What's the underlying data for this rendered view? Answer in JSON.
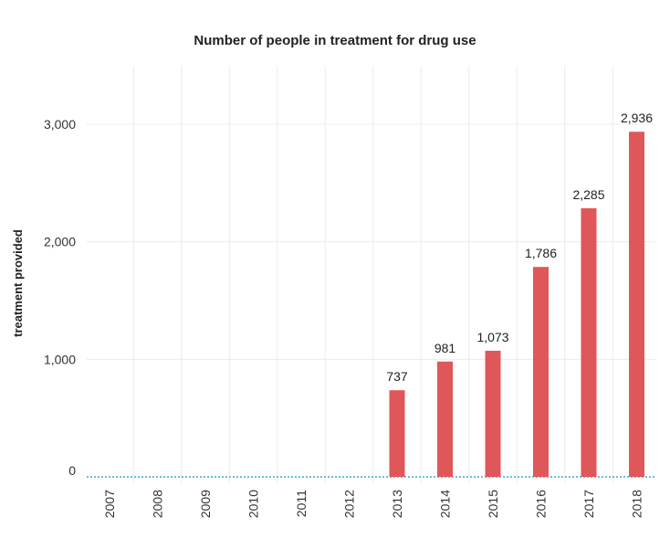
{
  "chart_data": {
    "type": "bar",
    "title": "Number of people in treatment for drug use",
    "xlabel": "",
    "ylabel": "treatment provided",
    "categories": [
      "2007",
      "2008",
      "2009",
      "2010",
      "2011",
      "2012",
      "2013",
      "2014",
      "2015",
      "2016",
      "2017",
      "2018"
    ],
    "values": [
      null,
      null,
      null,
      null,
      null,
      null,
      737,
      981,
      1073,
      1786,
      2285,
      2936
    ],
    "data_labels": [
      "",
      "",
      "",
      "",
      "",
      "",
      "737",
      "981",
      "1,073",
      "1,786",
      "2,285",
      "2,936"
    ],
    "yticks": [
      0,
      1000,
      2000,
      3000
    ],
    "ytick_labels": [
      "0",
      "1,000",
      "2,000",
      "3,000"
    ],
    "ylim": [
      -80,
      3450
    ],
    "grid": true,
    "colors": {
      "bar": "#e05759",
      "grid": "#ececec",
      "zero_line": "#3aa6d6"
    }
  }
}
